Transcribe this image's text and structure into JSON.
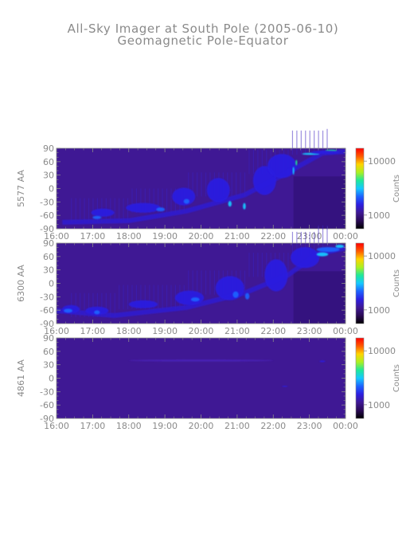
{
  "title": "All-Sky Imager at South Pole (2005-06-10)",
  "subtitle": "Geomagnetic Pole-Equator",
  "chart_data": [
    {
      "type": "heatmap",
      "ylabel": "5577 AA",
      "x_ticks": [
        "16:00",
        "17:00",
        "18:00",
        "19:00",
        "20:00",
        "21:00",
        "22:00",
        "23:00",
        "00:00"
      ],
      "y_ticks": [
        90,
        60,
        30,
        0,
        -30,
        -60,
        -90
      ],
      "ylim": [
        -90,
        90
      ],
      "colorbar": {
        "label": "Counts",
        "ticks": [
          "10000",
          "1000"
        ],
        "scale": "log"
      }
    },
    {
      "type": "heatmap",
      "ylabel": "6300 AA",
      "x_ticks": [
        "16:00",
        "17:00",
        "18:00",
        "19:00",
        "20:00",
        "21:00",
        "22:00",
        "23:00",
        "00:00"
      ],
      "y_ticks": [
        90,
        60,
        30,
        0,
        -30,
        -60,
        -90
      ],
      "ylim": [
        -90,
        90
      ],
      "colorbar": {
        "label": "Counts",
        "ticks": [
          "10000",
          "1000"
        ],
        "scale": "log"
      }
    },
    {
      "type": "heatmap",
      "ylabel": "4861 AA",
      "x_ticks": [
        "16:00",
        "17:00",
        "18:00",
        "19:00",
        "20:00",
        "21:00",
        "22:00",
        "23:00",
        "00:00"
      ],
      "y_ticks": [
        90,
        60,
        30,
        0,
        -30,
        -60,
        -90
      ],
      "ylim": [
        -90,
        90
      ],
      "colorbar": {
        "label": "Counts",
        "ticks": [
          "10000",
          "1000"
        ],
        "scale": "log"
      }
    }
  ],
  "colors": {
    "text": "#8a8a8a",
    "background": "#3f1894",
    "cmap": [
      "#000000",
      "#2a0a55",
      "#3f1894",
      "#2c1ee0",
      "#1d62ff",
      "#15c8ff",
      "#1ee89a",
      "#aaf022",
      "#ffd400",
      "#ff5a00",
      "#ff0000"
    ]
  }
}
